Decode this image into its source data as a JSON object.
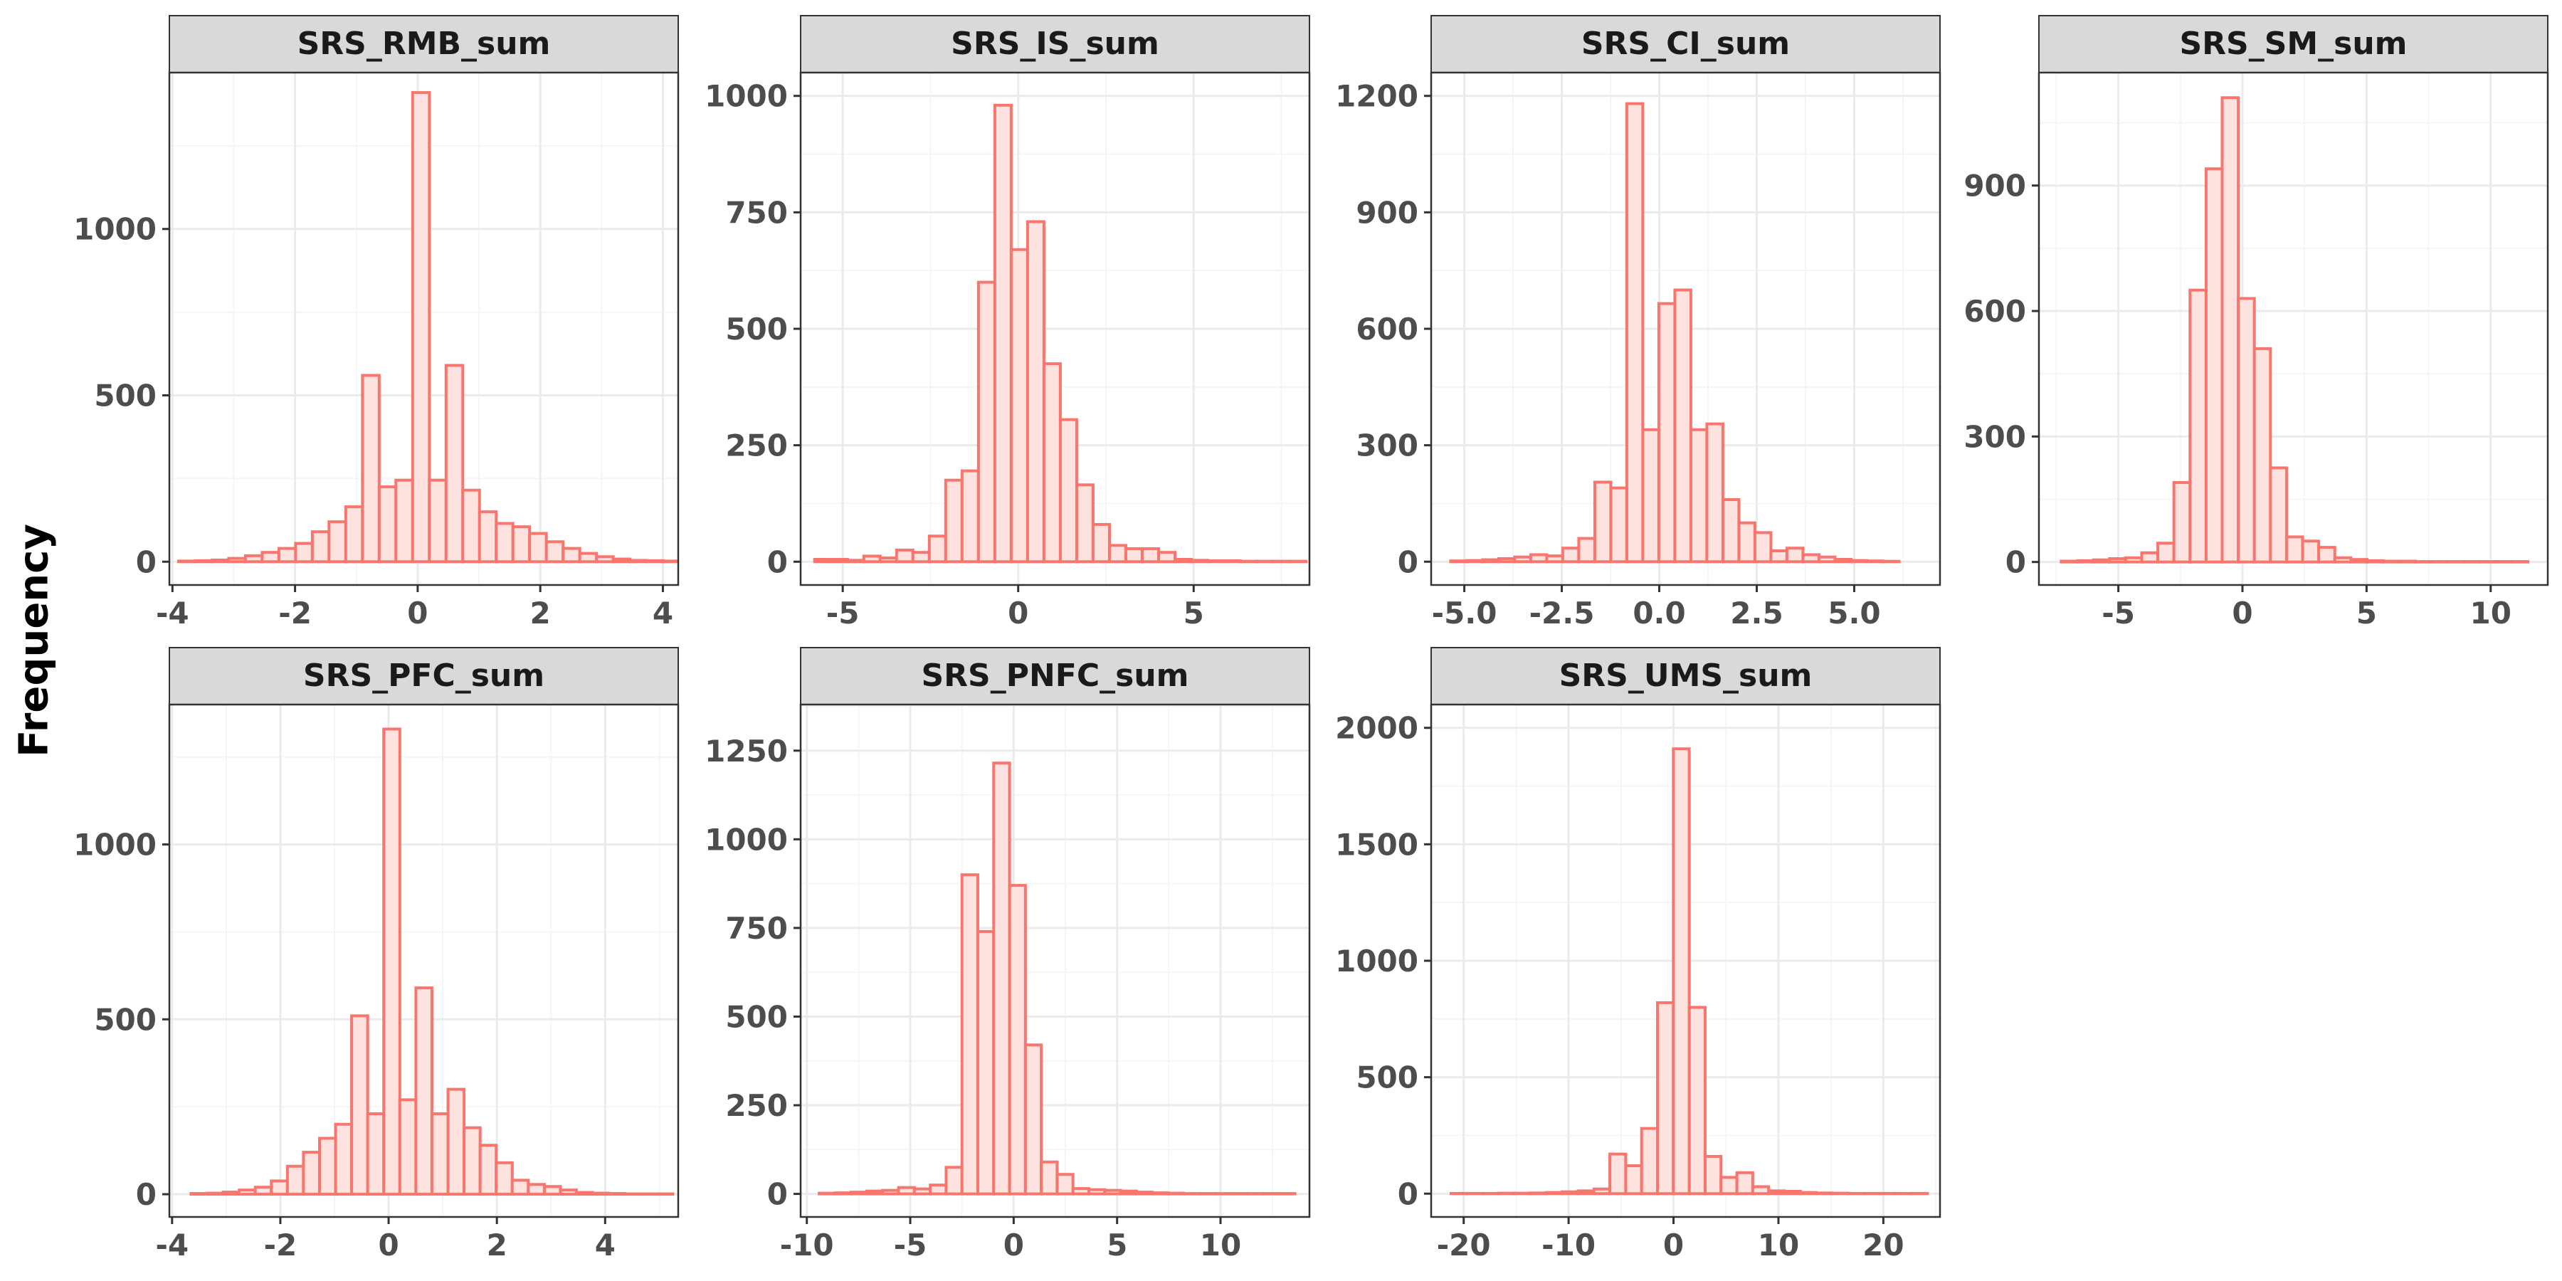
{
  "figure": {
    "ylabel": "Frequency"
  },
  "colors": {
    "bar_stroke": "#F8766D",
    "bar_fill": "#FDE2E0",
    "strip_fill": "#D9D9D9",
    "panel_border": "#333333",
    "grid_major": "#EBEBEB",
    "grid_minor": "#F5F5F5",
    "tick_text": "#4D4D4D"
  },
  "chart_data": [
    {
      "type": "bar",
      "title": "SRS_RMB_sum",
      "xlabel": "",
      "ylabel": "Frequency",
      "xlim": [
        -4.05,
        4.25
      ],
      "ylim": [
        -70,
        1470
      ],
      "xticks": [
        -4,
        -2,
        0,
        2,
        4
      ],
      "xtick_labels": [
        "-4",
        "-2",
        "0",
        "2",
        "4"
      ],
      "yticks": [
        0,
        500,
        1000
      ],
      "ytick_labels": [
        "0",
        "500",
        "1000"
      ],
      "bin_start": -3.9,
      "bin_width": 0.2727,
      "counts": [
        2,
        3,
        5,
        10,
        18,
        28,
        40,
        55,
        90,
        120,
        165,
        560,
        225,
        245,
        1410,
        245,
        590,
        215,
        150,
        115,
        105,
        85,
        60,
        40,
        25,
        15,
        8,
        4,
        3,
        2
      ]
    },
    {
      "type": "bar",
      "title": "SRS_IS_sum",
      "xlabel": "",
      "ylabel": "Frequency",
      "xlim": [
        -6.2,
        8.3
      ],
      "ylim": [
        -50,
        1050
      ],
      "xticks": [
        -5,
        0,
        5
      ],
      "xtick_labels": [
        "-5",
        "0",
        "5"
      ],
      "yticks": [
        0,
        250,
        500,
        750,
        1000
      ],
      "ytick_labels": [
        "0",
        "250",
        "500",
        "750",
        "1000"
      ],
      "bin_start": -5.8,
      "bin_width": 0.4667,
      "counts": [
        5,
        5,
        3,
        12,
        8,
        25,
        20,
        55,
        175,
        195,
        600,
        980,
        670,
        730,
        425,
        305,
        165,
        80,
        35,
        28,
        28,
        20,
        5,
        3,
        2,
        2,
        1,
        1,
        1,
        1
      ]
    },
    {
      "type": "bar",
      "title": "SRS_CI_sum",
      "xlabel": "",
      "ylabel": "Frequency",
      "xlim": [
        -5.85,
        7.2
      ],
      "ylim": [
        -60,
        1260
      ],
      "xticks": [
        -5,
        -2.5,
        0,
        2.5,
        5
      ],
      "xtick_labels": [
        "-5.0",
        "-2.5",
        "0.0",
        "2.5",
        "5.0"
      ],
      "yticks": [
        0,
        300,
        600,
        900,
        1200
      ],
      "ytick_labels": [
        "0",
        "300",
        "600",
        "900",
        "1200"
      ],
      "bin_start": -5.35,
      "bin_width": 0.4107,
      "counts": [
        2,
        3,
        5,
        8,
        12,
        18,
        15,
        35,
        60,
        205,
        190,
        1180,
        340,
        665,
        700,
        340,
        355,
        160,
        100,
        75,
        28,
        35,
        18,
        12,
        6,
        3,
        2,
        1
      ],
      "extra_counts_note": ""
    },
    {
      "type": "bar",
      "title": "SRS_SM_sum",
      "xlabel": "",
      "ylabel": "Frequency",
      "xlim": [
        -8.2,
        12.3
      ],
      "ylim": [
        -55,
        1170
      ],
      "xticks": [
        -5,
        0,
        5,
        10
      ],
      "xtick_labels": [
        "-5",
        "0",
        "5",
        "10"
      ],
      "yticks": [
        0,
        300,
        600,
        900
      ],
      "ytick_labels": [
        "0",
        "300",
        "600",
        "900"
      ],
      "bin_start": -7.3,
      "bin_width": 0.6483,
      "counts": [
        2,
        3,
        5,
        8,
        10,
        22,
        45,
        190,
        650,
        940,
        1110,
        630,
        510,
        225,
        60,
        50,
        35,
        10,
        6,
        3,
        2,
        2,
        1,
        1,
        1,
        1,
        1,
        1,
        1
      ]
    },
    {
      "type": "bar",
      "title": "SRS_PFC_sum",
      "xlabel": "",
      "ylabel": "Frequency",
      "xlim": [
        -4.05,
        5.35
      ],
      "ylim": [
        -65,
        1400
      ],
      "xticks": [
        -4,
        -2,
        0,
        2,
        4
      ],
      "xtick_labels": [
        "-4",
        "-2",
        "0",
        "2",
        "4"
      ],
      "yticks": [
        0,
        500,
        1000
      ],
      "ytick_labels": [
        "0",
        "500",
        "1000"
      ],
      "bin_start": -3.65,
      "bin_width": 0.2967,
      "counts": [
        2,
        3,
        6,
        12,
        20,
        38,
        80,
        120,
        160,
        200,
        510,
        230,
        1330,
        270,
        590,
        230,
        300,
        190,
        140,
        90,
        40,
        28,
        22,
        12,
        5,
        3,
        2,
        1,
        1,
        1
      ]
    },
    {
      "type": "bar",
      "title": "SRS_PNFC_sum",
      "xlabel": "",
      "ylabel": "Frequency",
      "xlim": [
        -10.3,
        14.3
      ],
      "ylim": [
        -65,
        1380
      ],
      "xticks": [
        -10,
        -5,
        0,
        5,
        10
      ],
      "xtick_labels": [
        "-10",
        "-5",
        "0",
        "5",
        "10"
      ],
      "yticks": [
        0,
        250,
        500,
        750,
        1000,
        1250
      ],
      "ytick_labels": [
        "0",
        "250",
        "500",
        "750",
        "1000",
        "1250"
      ],
      "bin_start": -9.4,
      "bin_width": 0.7667,
      "counts": [
        2,
        3,
        5,
        8,
        10,
        18,
        14,
        25,
        75,
        900,
        740,
        1215,
        870,
        420,
        90,
        55,
        15,
        12,
        10,
        8,
        5,
        3,
        2,
        1,
        1,
        1,
        1,
        1,
        1,
        1
      ]
    },
    {
      "type": "bar",
      "title": "SRS_UMS_sum",
      "xlabel": "",
      "ylabel": "Frequency",
      "xlim": [
        -23.1,
        25.4
      ],
      "ylim": [
        -100,
        2100
      ],
      "xticks": [
        -20,
        -10,
        0,
        10,
        20
      ],
      "xtick_labels": [
        "-20",
        "-10",
        "0",
        "10",
        "20"
      ],
      "yticks": [
        0,
        500,
        1000,
        1500,
        2000
      ],
      "ytick_labels": [
        "0",
        "500",
        "1000",
        "1500",
        "2000"
      ],
      "bin_start": -21.2,
      "bin_width": 1.5133,
      "counts": [
        1,
        1,
        1,
        2,
        2,
        3,
        5,
        8,
        12,
        20,
        170,
        120,
        280,
        820,
        1910,
        800,
        160,
        70,
        90,
        30,
        12,
        10,
        5,
        3,
        2,
        1,
        1,
        1,
        1,
        1
      ]
    }
  ]
}
